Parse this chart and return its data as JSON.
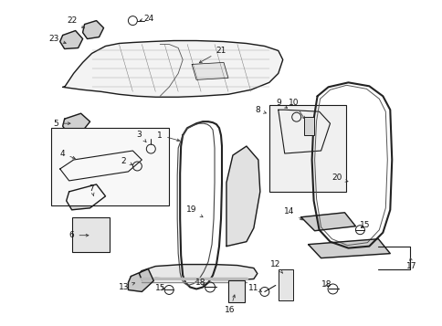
{
  "bg_color": "#ffffff",
  "line_color": "#1a1a1a",
  "text_color": "#111111",
  "fig_width": 4.85,
  "fig_height": 3.57,
  "dpi": 100
}
